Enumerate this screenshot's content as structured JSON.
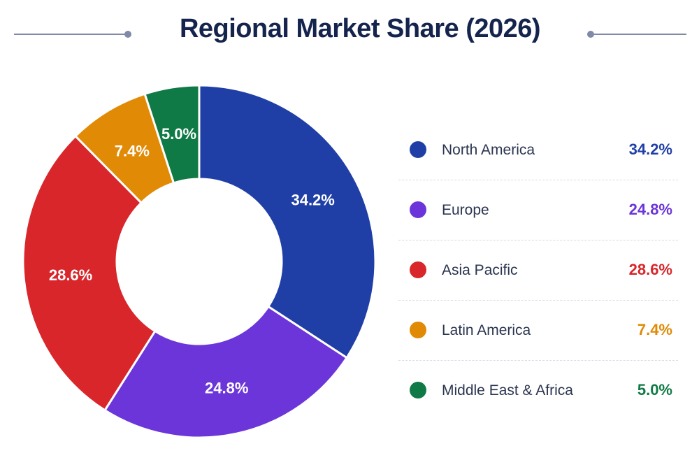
{
  "chart_data": {
    "type": "pie",
    "title": "Regional Market Share (2026)",
    "donut": true,
    "categories": [
      "North America",
      "Europe",
      "Asia Pacific",
      "Latin America",
      "Middle East & Africa"
    ],
    "values": [
      34.2,
      24.8,
      28.6,
      7.4,
      5.0
    ],
    "value_labels": [
      "34.2%",
      "24.8%",
      "28.6%",
      "7.4%",
      "5.0%"
    ],
    "colors": [
      "#1f3fa6",
      "#6c35d9",
      "#d8262b",
      "#e08a05",
      "#0f7a45"
    ],
    "legend": {
      "placement": "right",
      "entries": [
        {
          "label": "North America",
          "value": "34.2%",
          "color": "#1f3fa6"
        },
        {
          "label": "Europe",
          "value": "24.8%",
          "color": "#6c35d9"
        },
        {
          "label": "Asia Pacific",
          "value": "28.6%",
          "color": "#d8262b"
        },
        {
          "label": "Latin America",
          "value": "7.4%",
          "color": "#e08a05"
        },
        {
          "label": "Middle East & Africa",
          "value": "5.0%",
          "color": "#0f7a45"
        }
      ]
    }
  }
}
